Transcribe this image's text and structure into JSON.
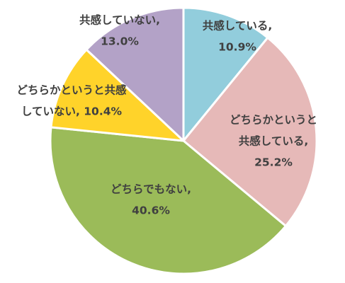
{
  "chart_data": {
    "type": "pie",
    "title": "",
    "start_angle_deg": 0,
    "direction": "clockwise",
    "slices": [
      {
        "name_lines": [
          "共感している,"
        ],
        "value": 10.9,
        "value_label": "10.9%",
        "color": "#92CDDC"
      },
      {
        "name_lines": [
          "どちらかというと",
          "共感している,"
        ],
        "value": 25.2,
        "value_label": "25.2%",
        "color": "#E6B9B8"
      },
      {
        "name_lines": [
          "どちらでもない,"
        ],
        "value": 40.6,
        "value_label": "40.6%",
        "color": "#9BBB59"
      },
      {
        "name_lines": [
          "どちらかというと共感",
          "していない, 10.4%"
        ],
        "value": 10.4,
        "value_label": "",
        "color": "#FFD32A"
      },
      {
        "name_lines": [
          "共感していない,"
        ],
        "value": 13.0,
        "value_label": "13.0%",
        "color": "#B3A2C7"
      }
    ]
  }
}
